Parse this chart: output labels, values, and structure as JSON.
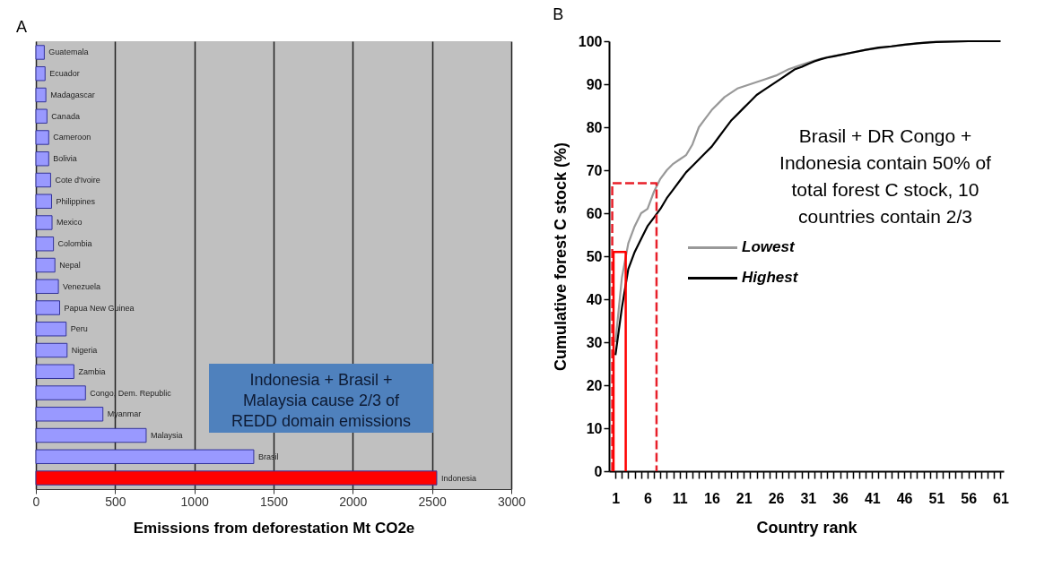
{
  "chart_data": [
    {
      "type": "bar",
      "orientation": "horizontal",
      "title": "A",
      "xlabel": "Emissions from deforestation   Mt CO2e",
      "categories": [
        "Guatemala",
        "Ecuador",
        "Madagascar",
        "Canada",
        "Cameroon",
        "Bolivia",
        "Cote d'Ivoire",
        "Philippines",
        "Mexico",
        "Colombia",
        "Nepal",
        "Venezuela",
        "Papua New Guinea",
        "Peru",
        "Nigeria",
        "Zambia",
        "Congo, Dem. Republic",
        "Myanmar",
        "Malaysia",
        "Brasil",
        "Indonesia"
      ],
      "values": [
        53,
        58,
        63,
        70,
        81,
        81,
        93,
        99,
        102,
        111,
        120,
        142,
        150,
        191,
        197,
        240,
        313,
        423,
        696,
        1375,
        2530
      ],
      "colors": [
        "#9999ff",
        "#9999ff",
        "#9999ff",
        "#9999ff",
        "#9999ff",
        "#9999ff",
        "#9999ff",
        "#9999ff",
        "#9999ff",
        "#9999ff",
        "#9999ff",
        "#9999ff",
        "#9999ff",
        "#9999ff",
        "#9999ff",
        "#9999ff",
        "#9999ff",
        "#9999ff",
        "#9999ff",
        "#9999ff",
        "#ff0000"
      ],
      "xlim": [
        0,
        3000
      ],
      "xticks": [
        0,
        500,
        1000,
        1500,
        2000,
        2500,
        3000
      ],
      "grid": "x",
      "tick_labels": "x",
      "annotations": [
        "Indonesia + Brasil + Malaysia cause 2/3 of REDD domain emissions"
      ]
    },
    {
      "type": "line",
      "title": "B",
      "xlabel": "Country rank",
      "ylabel": "Cumulative forest C stock (%)",
      "xlim": [
        0,
        61.5
      ],
      "ylim": [
        0,
        100
      ],
      "yticks": [
        0,
        10,
        20,
        30,
        40,
        50,
        60,
        70,
        80,
        90,
        100
      ],
      "xticks": [
        1,
        {
          "value": 2,
          "label": null
        },
        {
          "value": 3,
          "label": null
        },
        {
          "value": 4,
          "label": null
        },
        {
          "value": 5,
          "label": null
        },
        6,
        {
          "value": 7,
          "label": null
        },
        {
          "value": 8,
          "label": null
        },
        {
          "value": 9,
          "label": null
        },
        {
          "value": 10,
          "label": null
        },
        11,
        {
          "value": 12,
          "label": null
        },
        {
          "value": 13,
          "label": null
        },
        {
          "value": 14,
          "label": null
        },
        {
          "value": 15,
          "label": null
        },
        16,
        {
          "value": 17,
          "label": null
        },
        {
          "value": 18,
          "label": null
        },
        {
          "value": 19,
          "label": null
        },
        {
          "value": 20,
          "label": null
        },
        21,
        {
          "value": 22,
          "label": null
        },
        {
          "value": 23,
          "label": null
        },
        {
          "value": 24,
          "label": null
        },
        {
          "value": 25,
          "label": null
        },
        26,
        {
          "value": 27,
          "label": null
        },
        {
          "value": 28,
          "label": null
        },
        {
          "value": 29,
          "label": null
        },
        {
          "value": 30,
          "label": null
        },
        31,
        {
          "value": 32,
          "label": null
        },
        {
          "value": 33,
          "label": null
        },
        {
          "value": 34,
          "label": null
        },
        {
          "value": 35,
          "label": null
        },
        36,
        {
          "value": 37,
          "label": null
        },
        {
          "value": 38,
          "label": null
        },
        {
          "value": 39,
          "label": null
        },
        {
          "value": 40,
          "label": null
        },
        41,
        {
          "value": 42,
          "label": null
        },
        {
          "value": 43,
          "label": null
        },
        {
          "value": 44,
          "label": null
        },
        {
          "value": 45,
          "label": null
        },
        46,
        {
          "value": 47,
          "label": null
        },
        {
          "value": 48,
          "label": null
        },
        {
          "value": 49,
          "label": null
        },
        {
          "value": 50,
          "label": null
        },
        51,
        {
          "value": 52,
          "label": null
        },
        {
          "value": 53,
          "label": null
        },
        {
          "value": 54,
          "label": null
        },
        {
          "value": 55,
          "label": null
        },
        56,
        {
          "value": 57,
          "label": null
        },
        {
          "value": 58,
          "label": null
        },
        {
          "value": 59,
          "label": null
        },
        {
          "value": 60,
          "label": null
        },
        61
      ],
      "legend": "center",
      "series": [
        {
          "name": "Lowest",
          "color": "#999999",
          "x": [
            1,
            2,
            3,
            4,
            5,
            6,
            7,
            8,
            9,
            10,
            11,
            12,
            13,
            14,
            15,
            16,
            17,
            18,
            19,
            20,
            22,
            24,
            26,
            28,
            30,
            32,
            34,
            36,
            40,
            45,
            50,
            56,
            61
          ],
          "values": [
            30,
            45,
            53,
            57,
            60,
            61,
            65,
            68,
            70,
            71.5,
            72.5,
            73.5,
            76,
            80,
            82,
            84,
            85.5,
            87,
            88,
            89,
            90,
            91,
            92,
            93.5,
            94.5,
            95.5,
            96.3,
            96.8,
            98,
            99,
            99.8,
            100,
            100
          ]
        },
        {
          "name": "Highest",
          "color": "#000000",
          "x": [
            1,
            2,
            3,
            4,
            5,
            6,
            7,
            8,
            9,
            10,
            11,
            12,
            13,
            14,
            15,
            16,
            17,
            18,
            19,
            20,
            21,
            22,
            23,
            24,
            25,
            26,
            27,
            28,
            29,
            30,
            31,
            32,
            33,
            34,
            35,
            36,
            38,
            40,
            42,
            44,
            46,
            48,
            51,
            56,
            61
          ],
          "values": [
            27,
            38,
            47,
            51,
            54,
            57,
            59,
            61,
            63.5,
            65.5,
            67.5,
            69.5,
            71,
            72.5,
            74,
            75.5,
            77.5,
            79.5,
            81.5,
            83,
            84.5,
            86,
            87.5,
            88.5,
            89.5,
            90.5,
            91.5,
            92.5,
            93.5,
            94,
            94.7,
            95.3,
            95.8,
            96.2,
            96.5,
            96.8,
            97.4,
            98,
            98.5,
            98.8,
            99.2,
            99.5,
            99.8,
            100,
            100
          ]
        },
        {
          "type": "line",
          "color": "#e8202a",
          "line_style": "dashed",
          "x": [
            0.5,
            0.5,
            7.4,
            7.4
          ],
          "values": [
            0,
            67,
            67,
            0
          ]
        },
        {
          "type": "line",
          "color": "#ff0000",
          "line_style": "solid",
          "x": [
            0.7,
            0.7,
            2.6,
            2.6
          ],
          "values": [
            0,
            51,
            51,
            0
          ]
        }
      ],
      "annotations": [
        "Brasil + DR Congo + Indonesia contain 50% of total forest C stock, 10 countries contain 2/3"
      ]
    }
  ]
}
